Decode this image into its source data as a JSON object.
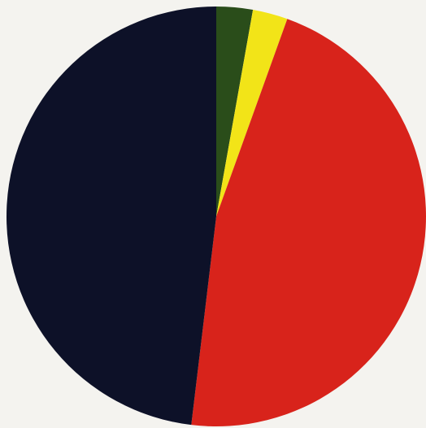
{
  "chart_data": {
    "type": "pie",
    "title": "",
    "start_angle_deg": 0,
    "direction": "clockwise",
    "categories": [
      "",
      "",
      "",
      ""
    ],
    "values": [
      2.8,
      2.7,
      46.4,
      48.1
    ],
    "colors": [
      "#2a4d1a",
      "#f2e418",
      "#d8231b",
      "#0d1128"
    ],
    "legend": "none"
  },
  "background_color": "#f4f3ef"
}
